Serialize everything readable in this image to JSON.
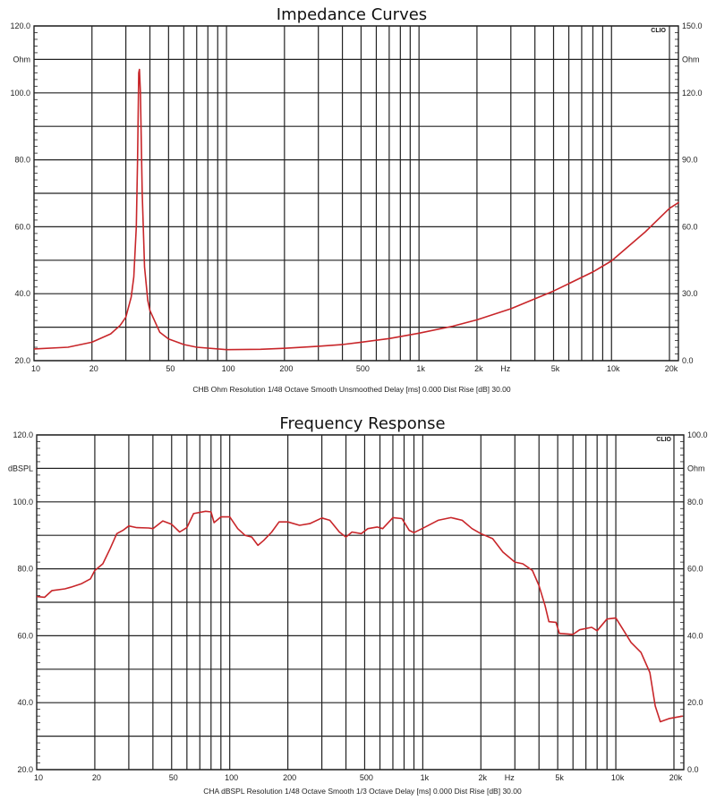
{
  "chart_data": [
    {
      "type": "line",
      "title": "Impedance Curves",
      "footer": "CHB Ohm Resolution 1/48 Octave Smooth Unsmoothed Delay [ms] 0.000 Dist Rise [dB] 30.00",
      "logo": "CLIO",
      "xscale": "log",
      "xlim": [
        10,
        22400
      ],
      "x_unit_label": "Hz",
      "x_tick_labels": [
        [
          "10",
          10
        ],
        [
          "20",
          20
        ],
        [
          "50",
          50
        ],
        [
          "100",
          100
        ],
        [
          "200",
          200
        ],
        [
          "500",
          500
        ],
        [
          "1k",
          1000
        ],
        [
          "2k",
          2000
        ],
        [
          "5k",
          5000
        ],
        [
          "10k",
          10000
        ],
        [
          "20k",
          20000
        ]
      ],
      "ylim": [
        20,
        120
      ],
      "y_unit_label": "Ohm",
      "y_tick_labels": [
        "20.0",
        "40.0",
        "60.0",
        "80.0",
        "100.0",
        "120.0"
      ],
      "y2lim": [
        0,
        150
      ],
      "y2_unit_label": "Ohm",
      "y2_tick_labels": [
        "0.0",
        "30.0",
        "60.0",
        "90.0",
        "120.0",
        "150.0"
      ],
      "grid": true,
      "line_color": "#c8262a",
      "series": [
        {
          "x": [
            10,
            15,
            20,
            25,
            28,
            30,
            32,
            33,
            34,
            34.5,
            35,
            35.3,
            35.7,
            36,
            36.5,
            37.5,
            39,
            40,
            45,
            50,
            60,
            70,
            100,
            150,
            200,
            300,
            400,
            500,
            700,
            1000,
            1500,
            2000,
            3000,
            5000,
            8000,
            10000,
            15000,
            20000,
            22400
          ],
          "y": [
            23.5,
            24,
            25.5,
            28,
            30.5,
            33,
            39,
            45,
            60,
            80,
            106,
            107,
            100,
            88,
            70,
            48,
            38,
            35,
            28.5,
            26.5,
            24.8,
            24,
            23.3,
            23.4,
            23.7,
            24.3,
            24.8,
            25.5,
            26.6,
            28.2,
            30.3,
            32.2,
            35.5,
            40.8,
            46.5,
            49.8,
            58.5,
            65.5,
            67.3
          ]
        }
      ]
    },
    {
      "type": "line",
      "title": "Frequency Response",
      "footer": "CHA dBSPL Resolution 1/48 Octave Smooth 1/3 Octave Delay [ms] 0.000 Dist Rise [dB] 30.00",
      "logo": "CLIO",
      "xscale": "log",
      "xlim": [
        10,
        22200
      ],
      "x_unit_label": "Hz",
      "x_tick_labels": [
        [
          "10",
          10
        ],
        [
          "20",
          20
        ],
        [
          "50",
          50
        ],
        [
          "100",
          100
        ],
        [
          "200",
          200
        ],
        [
          "500",
          500
        ],
        [
          "1k",
          1000
        ],
        [
          "2k",
          2000
        ],
        [
          "5k",
          5000
        ],
        [
          "10k",
          10000
        ],
        [
          "20k",
          20000
        ]
      ],
      "ylim": [
        20,
        120
      ],
      "y_unit_label": "dBSPL",
      "y_tick_labels": [
        "20.0",
        "40.0",
        "60.0",
        "80.0",
        "100.0",
        "120.0"
      ],
      "y2lim": [
        0,
        100
      ],
      "y2_unit_label": "Ohm",
      "y2_tick_labels": [
        "0.0",
        "20.0",
        "40.0",
        "60.0",
        "80.0",
        "100.0"
      ],
      "grid": true,
      "line_color": "#c8262a",
      "series": [
        {
          "x": [
            10,
            11,
            12,
            14,
            15,
            17,
            19,
            20,
            22,
            24,
            26,
            28,
            30,
            33,
            38,
            40,
            45,
            50,
            55,
            60,
            65,
            75,
            80,
            83,
            90,
            100,
            110,
            120,
            130,
            140,
            150,
            165,
            180,
            200,
            230,
            260,
            300,
            330,
            370,
            400,
            430,
            480,
            520,
            580,
            620,
            700,
            780,
            850,
            900,
            1000,
            1200,
            1400,
            1600,
            1800,
            2000,
            2300,
            2600,
            3000,
            3300,
            3700,
            4000,
            4300,
            4500,
            4900,
            5100,
            6000,
            6500,
            7500,
            8000,
            9000,
            10000,
            11000,
            12000,
            13500,
            15000,
            16000,
            17000,
            19000,
            22200
          ],
          "y": [
            71.7,
            71.5,
            73.5,
            74,
            74.5,
            75.5,
            77,
            79.5,
            81.5,
            86,
            90.5,
            91.5,
            92.8,
            92.3,
            92.2,
            92,
            94.3,
            93.3,
            91,
            92.3,
            96.5,
            97.2,
            97,
            93.8,
            95.5,
            95.5,
            92,
            90,
            89.5,
            87,
            88.5,
            91,
            94,
            94,
            93,
            93.5,
            95.2,
            94.5,
            91,
            89.5,
            91,
            90.5,
            92,
            92.5,
            92,
            95.3,
            95,
            91.5,
            90.8,
            92.1,
            94.5,
            95.3,
            94.5,
            92,
            90.5,
            89,
            85,
            82,
            81.5,
            79.5,
            75,
            69,
            64.2,
            64,
            60.7,
            60.4,
            61.8,
            62.5,
            61.5,
            65,
            65.3,
            61.5,
            58,
            55,
            49,
            39,
            34.3,
            35.3,
            36
          ]
        }
      ]
    }
  ]
}
